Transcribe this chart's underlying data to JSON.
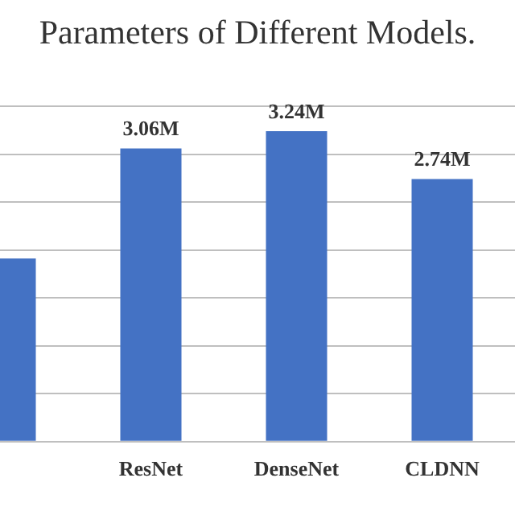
{
  "chart_data": {
    "type": "bar",
    "title": "Parameters of Different Models.",
    "categories": [
      null,
      "ResNet",
      "DenseNet",
      "CLDNN"
    ],
    "values": [
      1.91,
      3.06,
      3.24,
      2.74
    ],
    "value_labels": [
      null,
      "3.06M",
      "3.24M",
      "2.74M"
    ],
    "color": "#4472c4",
    "grid": "y",
    "tick_labels": "x",
    "legend": false
  }
}
